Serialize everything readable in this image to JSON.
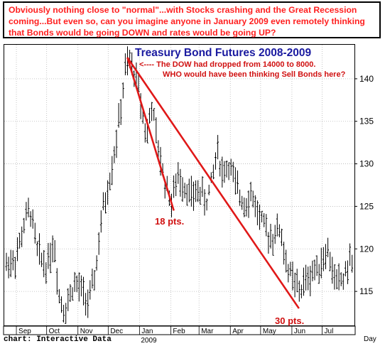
{
  "caption": "Obviously nothing close to \"normal\"...with Stocks crashing and the Great Recession coming...But even so, can you imagine anyone in January 2009 even remotely thinking that Bonds would be going DOWN and rates would be going UP?",
  "footer": "chart: Interactive Data",
  "colors": {
    "caption_text": "#ff2020",
    "title": "#1a1aa0",
    "annotation": "#d01010",
    "trend_line": "#e01818",
    "bars": "#000000",
    "grid": "#b8b8b8"
  },
  "chart_data": {
    "type": "ohlc",
    "title": "Treasury Bond Futures 2008-2009",
    "x_axis_unit": "Day",
    "x_tick_labels": [
      "Sep",
      "Oct",
      "Nov",
      "Dec",
      "Jan",
      "Feb",
      "Mar",
      "Apr",
      "May",
      "Jun",
      "Jul"
    ],
    "year_label": "2009",
    "y_ticks": [
      115,
      120,
      125,
      130,
      135,
      140
    ],
    "ylim": [
      111,
      144
    ],
    "grid": true,
    "annotations": [
      "<---- The DOW had dropped from 14000 to 8000.",
      "WHO would have been thinking Sell Bonds here?",
      "18 pts.",
      "30 pts."
    ],
    "trend_lines": [
      {
        "from_date": "2008-12-20",
        "from_value": 142.5,
        "to_date": "2009-02-04",
        "to_value": 124.5
      },
      {
        "from_date": "2008-12-20",
        "from_value": 142.5,
        "to_date": "2009-06-08",
        "to_value": 113.0
      }
    ],
    "price_path": [
      {
        "date": "2008-08-20",
        "value": 118.0
      },
      {
        "date": "2008-09-01",
        "value": 119.0
      },
      {
        "date": "2008-09-10",
        "value": 123.5
      },
      {
        "date": "2008-09-15",
        "value": 124.5
      },
      {
        "date": "2008-09-22",
        "value": 119.5
      },
      {
        "date": "2008-10-01",
        "value": 118.0
      },
      {
        "date": "2008-10-08",
        "value": 121.0
      },
      {
        "date": "2008-10-14",
        "value": 114.0
      },
      {
        "date": "2008-10-20",
        "value": 113.0
      },
      {
        "date": "2008-10-28",
        "value": 116.0
      },
      {
        "date": "2008-11-05",
        "value": 115.0
      },
      {
        "date": "2008-11-12",
        "value": 113.5
      },
      {
        "date": "2008-11-18",
        "value": 117.0
      },
      {
        "date": "2008-11-25",
        "value": 124.0
      },
      {
        "date": "2008-12-02",
        "value": 128.0
      },
      {
        "date": "2008-12-08",
        "value": 132.0
      },
      {
        "date": "2008-12-13",
        "value": 136.0
      },
      {
        "date": "2008-12-18",
        "value": 141.0
      },
      {
        "date": "2008-12-22",
        "value": 142.0
      },
      {
        "date": "2008-12-28",
        "value": 140.5
      },
      {
        "date": "2009-01-03",
        "value": 137.0
      },
      {
        "date": "2009-01-08",
        "value": 133.0
      },
      {
        "date": "2009-01-13",
        "value": 137.0
      },
      {
        "date": "2009-01-19",
        "value": 132.0
      },
      {
        "date": "2009-01-26",
        "value": 128.0
      },
      {
        "date": "2009-02-02",
        "value": 125.5
      },
      {
        "date": "2009-02-08",
        "value": 128.5
      },
      {
        "date": "2009-02-15",
        "value": 127.5
      },
      {
        "date": "2009-02-22",
        "value": 126.0
      },
      {
        "date": "2009-03-01",
        "value": 127.0
      },
      {
        "date": "2009-03-08",
        "value": 125.5
      },
      {
        "date": "2009-03-14",
        "value": 128.0
      },
      {
        "date": "2009-03-19",
        "value": 132.0
      },
      {
        "date": "2009-03-24",
        "value": 129.0
      },
      {
        "date": "2009-03-31",
        "value": 130.0
      },
      {
        "date": "2009-04-07",
        "value": 127.0
      },
      {
        "date": "2009-04-15",
        "value": 125.5
      },
      {
        "date": "2009-04-22",
        "value": 126.5
      },
      {
        "date": "2009-04-29",
        "value": 124.0
      },
      {
        "date": "2009-05-06",
        "value": 122.0
      },
      {
        "date": "2009-05-13",
        "value": 121.5
      },
      {
        "date": "2009-05-20",
        "value": 122.5
      },
      {
        "date": "2009-05-27",
        "value": 118.0
      },
      {
        "date": "2009-06-03",
        "value": 116.0
      },
      {
        "date": "2009-06-09",
        "value": 115.0
      },
      {
        "date": "2009-06-16",
        "value": 116.5
      },
      {
        "date": "2009-06-23",
        "value": 117.5
      },
      {
        "date": "2009-06-30",
        "value": 118.5
      },
      {
        "date": "2009-07-06",
        "value": 120.0
      },
      {
        "date": "2009-07-11",
        "value": 117.5
      },
      {
        "date": "2009-07-16",
        "value": 116.0
      },
      {
        "date": "2009-07-22",
        "value": 116.5
      },
      {
        "date": "2009-07-28",
        "value": 118.5
      }
    ]
  }
}
